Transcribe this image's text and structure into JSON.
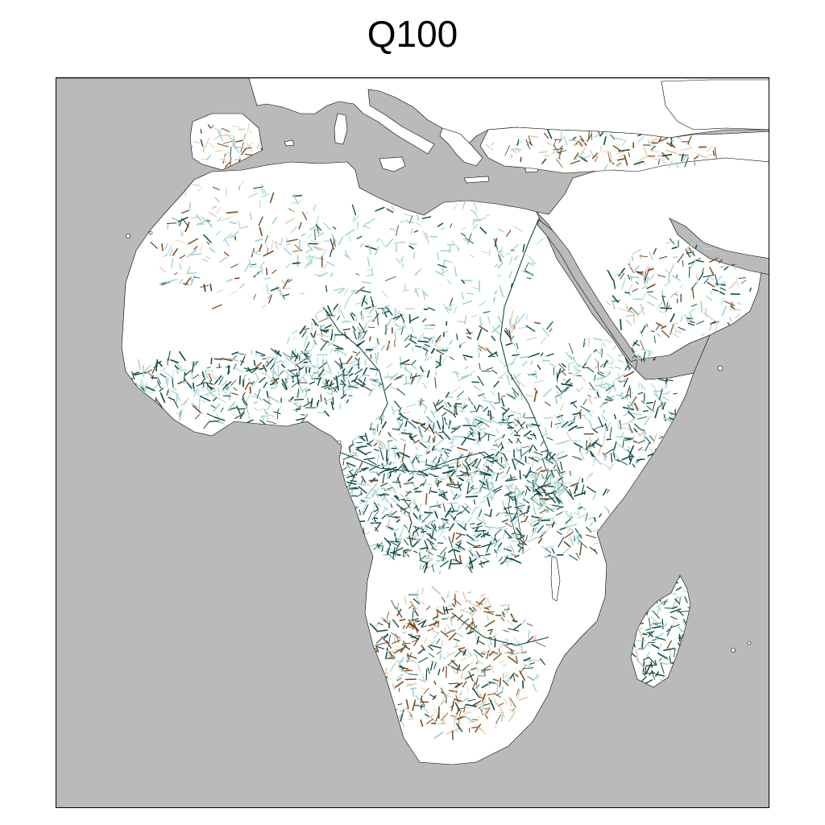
{
  "title": "Q100",
  "map": {
    "ocean_color": "#bababa",
    "land_color": "#ffffff",
    "coast_color": "#000000",
    "wet_color": "#0f4d46",
    "wet_light_color": "#9fd3cf",
    "dry_color": "#7a4a1e",
    "dry_light_color": "#e7c9a8",
    "legend_visible": false
  }
}
